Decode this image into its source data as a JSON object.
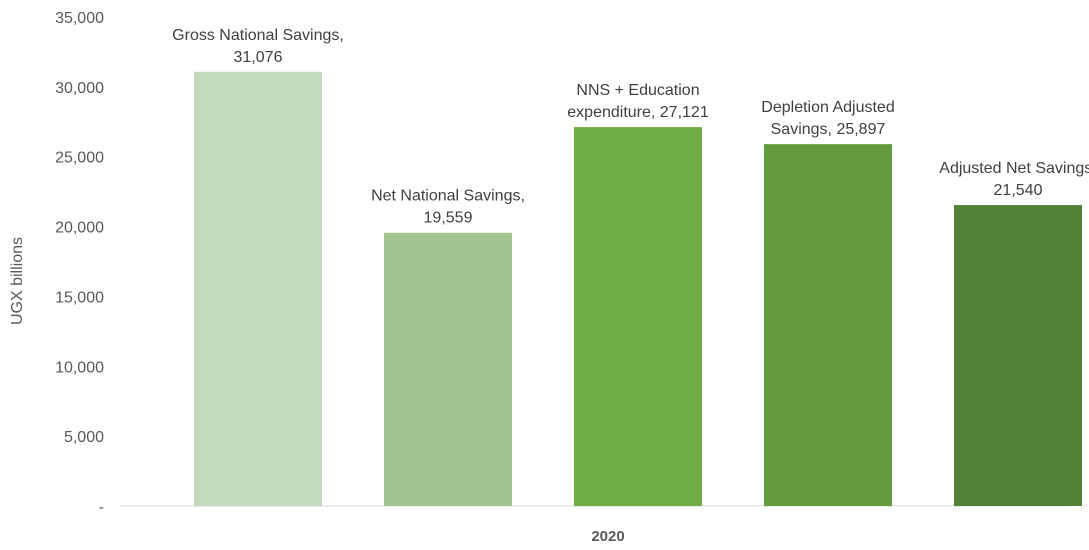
{
  "chart_data": {
    "type": "bar",
    "xlabel": "2020",
    "ylabel": "UGX billions",
    "ylim": [
      0,
      35000
    ],
    "yticks": [
      0,
      5000,
      10000,
      15000,
      20000,
      25000,
      30000,
      35000
    ],
    "ytick_labels": [
      "-",
      "5,000",
      "10,000",
      "15,000",
      "20,000",
      "25,000",
      "30,000",
      "35,000"
    ],
    "grid": false,
    "legend": "none",
    "bars": [
      {
        "name": "Gross National Savings",
        "value": 31076,
        "label_lines": [
          "Gross National Savings,",
          "31,076"
        ],
        "color": "#c5d9bc"
      },
      {
        "name": "Net National Savings",
        "value": 19559,
        "label_lines": [
          "Net National Savings,",
          "19,559"
        ],
        "color": "#a2c48e"
      },
      {
        "name": "NNS + Education expenditure",
        "value": 27121,
        "label_lines": [
          "NNS + Education",
          "expenditure,  27,121"
        ],
        "color": "#70ad47"
      },
      {
        "name": "Depletion Adjusted Savings",
        "value": 25897,
        "label_lines": [
          "Depletion Adjusted",
          "Savings,  25,897"
        ],
        "color": "#629b3b"
      },
      {
        "name": "Adjusted Net Savings",
        "value": 21540,
        "label_lines": [
          "Adjusted Net Savings,",
          "21,540"
        ],
        "color": "#538135"
      }
    ]
  }
}
